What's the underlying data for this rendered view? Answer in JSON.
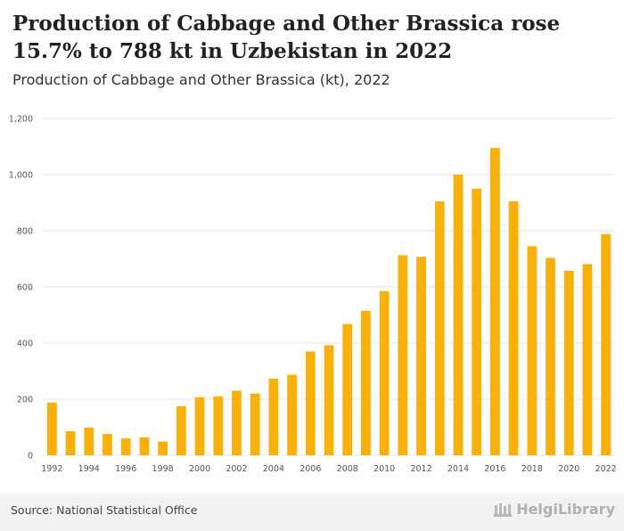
{
  "header": {
    "title": "Production of Cabbage and Other Brassica rose 15.7% to 788 kt in Uzbekistan in 2022",
    "subtitle": "Production of Cabbage and Other Brassica (kt), 2022"
  },
  "footer": {
    "source": "Source: National Statistical Office",
    "logo_text": "HelgiLibrary"
  },
  "colors": {
    "bar": "#f7b10a",
    "grid": "#e3e3e3",
    "tick_text": "#555555"
  },
  "chart_data": {
    "type": "bar",
    "title": "",
    "xlabel": "",
    "ylabel": "",
    "ylim": [
      0,
      1200
    ],
    "yticks": [
      0,
      200,
      400,
      600,
      800,
      1000,
      1200
    ],
    "ytick_labels": [
      "0",
      "200",
      "400",
      "600",
      "800",
      "1,000",
      "1,200"
    ],
    "categories": [
      "1992",
      "1993",
      "1994",
      "1995",
      "1996",
      "1997",
      "1998",
      "1999",
      "2000",
      "2001",
      "2002",
      "2003",
      "2004",
      "2005",
      "2006",
      "2007",
      "2008",
      "2009",
      "2010",
      "2011",
      "2012",
      "2013",
      "2014",
      "2015",
      "2016",
      "2017",
      "2018",
      "2019",
      "2020",
      "2021",
      "2022"
    ],
    "xtick_labels": [
      "1992",
      "1994",
      "1996",
      "1998",
      "2000",
      "2002",
      "2004",
      "2006",
      "2008",
      "2010",
      "2012",
      "2014",
      "2016",
      "2018",
      "2020",
      "2022"
    ],
    "values": [
      188,
      86,
      99,
      76,
      60,
      64,
      49,
      175,
      207,
      210,
      230,
      220,
      273,
      287,
      370,
      392,
      468,
      515,
      585,
      713,
      707,
      905,
      1000,
      950,
      1095,
      905,
      745,
      703,
      658,
      681,
      788
    ],
    "grid": true
  }
}
